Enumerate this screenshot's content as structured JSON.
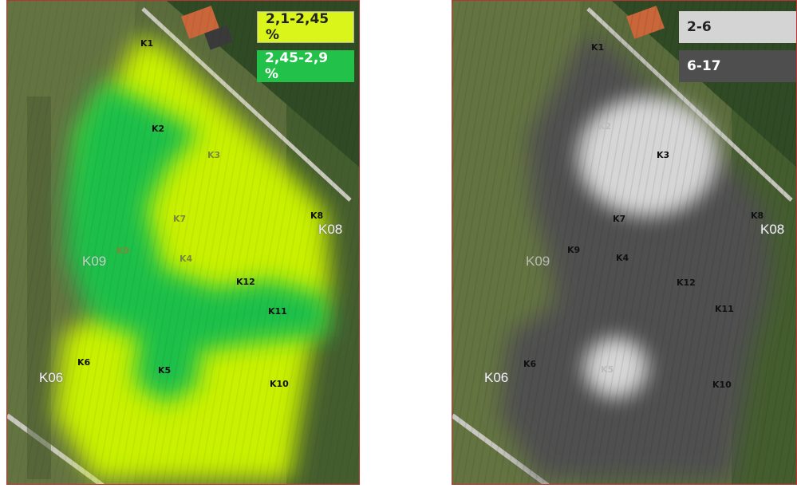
{
  "left_map": {
    "legend": [
      {
        "label": "2,1-2,45 %",
        "color": "#d9f51a"
      },
      {
        "label": "2,45-2,9 %",
        "color": "#22c24a"
      }
    ],
    "points": [
      "K1",
      "K2",
      "K3",
      "K7",
      "K9",
      "K4",
      "K8",
      "K12",
      "K11",
      "K6",
      "K5",
      "K10"
    ],
    "labels_large": [
      "K08",
      "K09",
      "K06"
    ]
  },
  "right_map": {
    "legend": [
      {
        "label": "2-6",
        "color": "#d4d4d4"
      },
      {
        "label": "6-17",
        "color": "#4e4e4e"
      }
    ],
    "points": [
      "K1",
      "K2",
      "K3",
      "K7",
      "K9",
      "K4",
      "K8",
      "K12",
      "K11",
      "K6",
      "K5",
      "K10"
    ],
    "labels_large": [
      "K08",
      "K09",
      "K06"
    ]
  }
}
